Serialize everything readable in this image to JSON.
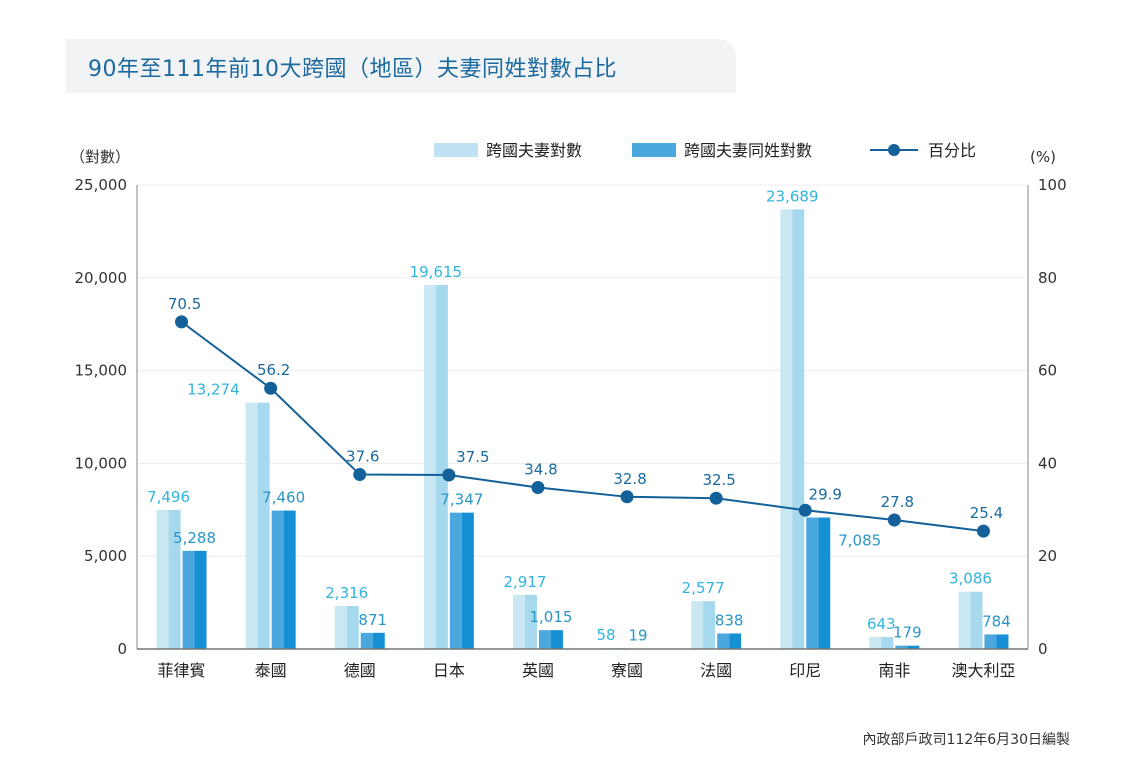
{
  "chart_data": {
    "type": "bar",
    "title": "90年至111年前10大跨國（地區）夫妻同姓對數占比",
    "categories": [
      "菲律賓",
      "泰國",
      "德國",
      "日本",
      "英國",
      "寮國",
      "法國",
      "印尼",
      "南非",
      "澳大利亞"
    ],
    "series": [
      {
        "name": "跨國夫妻對數",
        "kind": "bar",
        "axis": "left",
        "color": "#bfe3f2",
        "values": [
          7496,
          13274,
          2316,
          19615,
          2917,
          58,
          2577,
          23689,
          643,
          3086
        ],
        "labels": [
          "7,496",
          "13,274",
          "2,316",
          "19,615",
          "2,917",
          "58",
          "2,577",
          "23,689",
          "643",
          "3,086"
        ]
      },
      {
        "name": "跨國夫妻同姓對數",
        "kind": "bar",
        "axis": "left",
        "color": "#4aa8de",
        "values": [
          5288,
          7460,
          871,
          7347,
          1015,
          19,
          838,
          7085,
          179,
          784
        ],
        "labels": [
          "5,288",
          "7,460",
          "871",
          "7,347",
          "1,015",
          "19",
          "838",
          "7,085",
          "179",
          "784"
        ]
      },
      {
        "name": "百分比",
        "kind": "line",
        "axis": "right",
        "color": "#14609a",
        "values": [
          70.5,
          56.2,
          37.6,
          37.5,
          34.8,
          32.8,
          32.5,
          29.9,
          27.8,
          25.4
        ],
        "labels": [
          "70.5",
          "56.2",
          "37.6",
          "37.5",
          "34.8",
          "32.8",
          "32.5",
          "29.9",
          "27.8",
          "25.4"
        ]
      }
    ],
    "ylabel_left": "（對數）",
    "ylabel_right": "(%)",
    "ylim_left": [
      0,
      25000
    ],
    "ylim_right": [
      0,
      100
    ],
    "yticks_left": [
      "0",
      "5,000",
      "10,000",
      "15,000",
      "20,000",
      "25,000"
    ],
    "yticks_right": [
      "0",
      "20",
      "40",
      "60",
      "80",
      "100"
    ],
    "grid": true,
    "legend_position": "top-right",
    "source": "內政部戶政司112年6月30日編製"
  }
}
